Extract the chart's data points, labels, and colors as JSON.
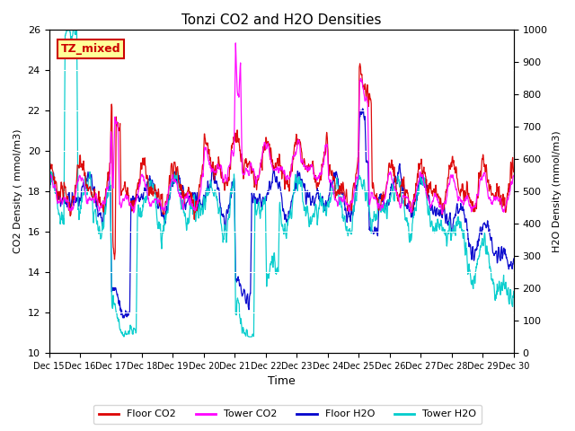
{
  "title": "Tonzi CO2 and H2O Densities",
  "xlabel": "Time",
  "ylabel_left": "CO2 Density ( mmol/m3)",
  "ylabel_right": "H2O Density (mmol/m3)",
  "ylim_left": [
    10,
    26
  ],
  "ylim_right": [
    0,
    1000
  ],
  "yticks_left": [
    10,
    12,
    14,
    16,
    18,
    20,
    22,
    24,
    26
  ],
  "yticks_right": [
    0,
    100,
    200,
    300,
    400,
    500,
    600,
    700,
    800,
    900,
    1000
  ],
  "xtick_labels": [
    "Dec 15",
    "Dec 16",
    "Dec 17",
    "Dec 18",
    "Dec 19",
    "Dec 20",
    "Dec 21",
    "Dec 22",
    "Dec 23",
    "Dec 24",
    "Dec 25",
    "Dec 26",
    "Dec 27",
    "Dec 28",
    "Dec 29",
    "Dec 30"
  ],
  "annotation_text": "TZ_mixed",
  "annotation_color": "#cc0000",
  "annotation_bg": "#ffff99",
  "floor_co2_color": "#dd0000",
  "tower_co2_color": "#ff00ff",
  "floor_h2o_color": "#0000cc",
  "tower_h2o_color": "#00cccc",
  "background_color": "#e8e8e8",
  "grid_color": "#ffffff",
  "n_points": 1440
}
